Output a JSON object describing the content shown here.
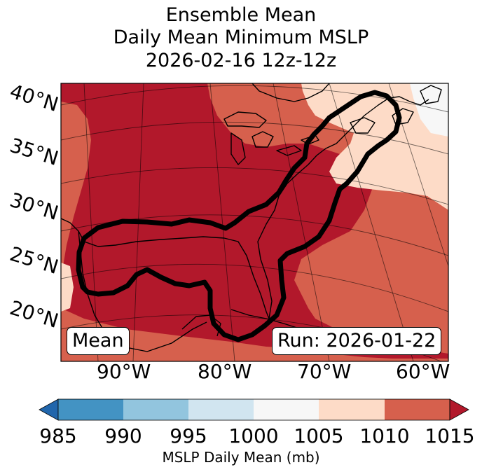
{
  "title": {
    "line1": "Ensemble Mean",
    "line2": "Daily Mean Minimum MSLP",
    "line3": "2026-02-16 12z-12z"
  },
  "lat_labels": [
    "40°N",
    "35°N",
    "30°N",
    "25°N",
    "20°N"
  ],
  "lon_labels": [
    "90°W",
    "80°W",
    "70°W",
    "60°W"
  ],
  "annotations": {
    "left_box": "Mean",
    "right_box": "Run: 2026-01-22"
  },
  "colorbar": {
    "label": "MSLP Daily Mean (mb)",
    "ticks": [
      "985",
      "990",
      "995",
      "1000",
      "1005",
      "1010",
      "1015"
    ],
    "under_color": "#2166ac",
    "over_color": "#b2182b",
    "colors": [
      "#4393c3",
      "#92c5de",
      "#d1e5f0",
      "#f7f7f7",
      "#fddbc7",
      "#d6604d"
    ]
  },
  "map": {
    "shading_colors": {
      "gt_1015": "#b2182b",
      "1010_1015": "#d6604d",
      "1005_1010": "#fddbc7",
      "1000_1005": "#f7f7f7"
    },
    "contour_color": "#000000"
  }
}
